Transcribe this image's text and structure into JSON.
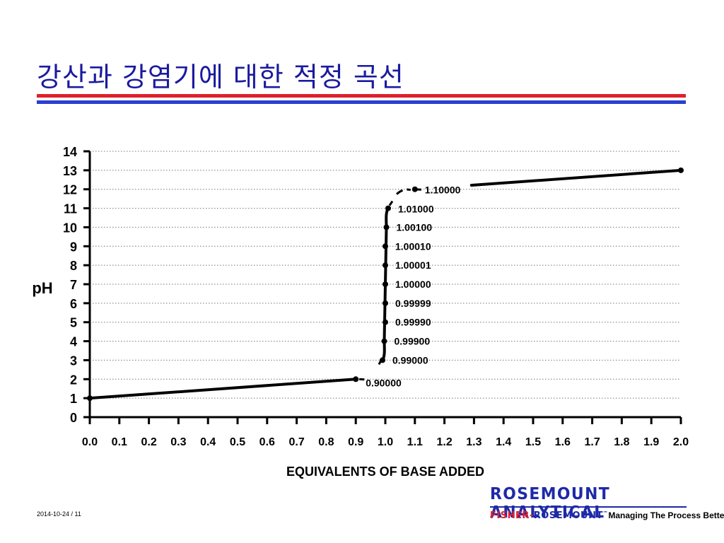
{
  "slide": {
    "title": "강산과 강염기에 대한 적정 곡선",
    "footer": "2014-10-24 / 11",
    "brand": "ROSEMOUNT ANALYTICAL",
    "company_fisher": "FISHER",
    "company_sep": "-",
    "company_rosemount": "ROSEMOUNT",
    "company_tm": "™",
    "tagline": "Managing The Process Better.",
    "colors": {
      "title": "#1a1aa0",
      "rule_red": "#e0202a",
      "rule_blue": "#2a3fd0",
      "brand": "#1e2aa8"
    }
  },
  "chart_data": {
    "type": "line",
    "xlabel": "EQUIVALENTS OF BASE ADDED",
    "ylabel": "pH",
    "xlim": [
      0.0,
      2.0
    ],
    "ylim": [
      0,
      14
    ],
    "x_ticks": [
      "0.0",
      "0.1",
      "0.2",
      "0.3",
      "0.4",
      "0.5",
      "0.6",
      "0.7",
      "0.8",
      "0.9",
      "1.0",
      "1.1",
      "1.2",
      "1.3",
      "1.4",
      "1.5",
      "1.6",
      "1.7",
      "1.8",
      "1.9",
      "2.0"
    ],
    "y_ticks": [
      "0",
      "1",
      "2",
      "3",
      "4",
      "5",
      "6",
      "7",
      "8",
      "9",
      "10",
      "11",
      "12",
      "13",
      "14"
    ],
    "grid": "horizontal-dotted",
    "points": [
      {
        "x": 0.0,
        "y": 1.0,
        "label": ""
      },
      {
        "x": 0.9,
        "y": 2.0,
        "label": "0.90000"
      },
      {
        "x": 0.99,
        "y": 3.0,
        "label": "0.99000"
      },
      {
        "x": 0.999,
        "y": 4.0,
        "label": "0.99900"
      },
      {
        "x": 0.9999,
        "y": 5.0,
        "label": "0.99990"
      },
      {
        "x": 0.99999,
        "y": 6.0,
        "label": "0.99999"
      },
      {
        "x": 1.0,
        "y": 7.0,
        "label": "1.00000"
      },
      {
        "x": 1.00001,
        "y": 8.0,
        "label": "1.00001"
      },
      {
        "x": 1.0001,
        "y": 9.0,
        "label": "1.00010"
      },
      {
        "x": 1.001,
        "y": 10.0,
        "label": "1.00100"
      },
      {
        "x": 1.01,
        "y": 11.0,
        "label": "1.01000"
      },
      {
        "x": 1.1,
        "y": 12.0,
        "label": "1.10000"
      },
      {
        "x": 2.0,
        "y": 13.0,
        "label": ""
      }
    ]
  }
}
